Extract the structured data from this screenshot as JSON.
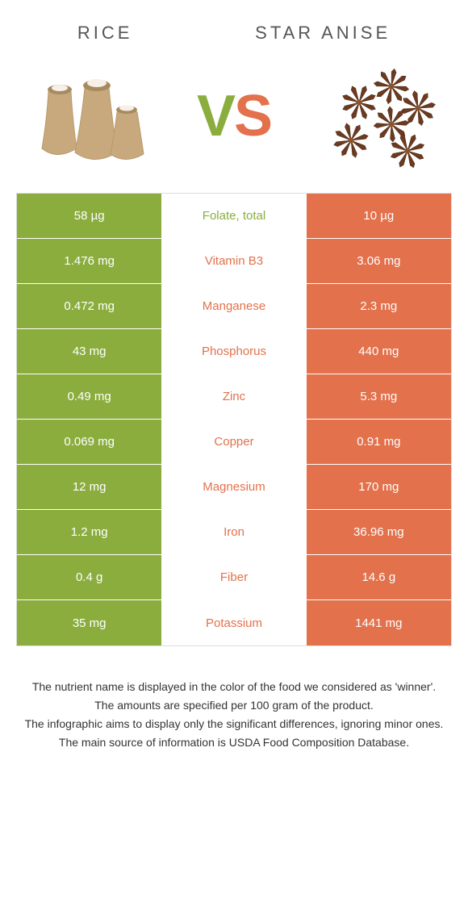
{
  "left": {
    "title": "Rice",
    "color": "#8aad3e"
  },
  "right": {
    "title": "Star Anise",
    "color": "#e2714c"
  },
  "vs": {
    "v": "V",
    "s": "S"
  },
  "rows": [
    {
      "left": "58 µg",
      "label": "Folate, total",
      "right": "10 µg",
      "winner": "left"
    },
    {
      "left": "1.476 mg",
      "label": "Vitamin B3",
      "right": "3.06 mg",
      "winner": "right"
    },
    {
      "left": "0.472 mg",
      "label": "Manganese",
      "right": "2.3 mg",
      "winner": "right"
    },
    {
      "left": "43 mg",
      "label": "Phosphorus",
      "right": "440 mg",
      "winner": "right"
    },
    {
      "left": "0.49 mg",
      "label": "Zinc",
      "right": "5.3 mg",
      "winner": "right"
    },
    {
      "left": "0.069 mg",
      "label": "Copper",
      "right": "0.91 mg",
      "winner": "right"
    },
    {
      "left": "12 mg",
      "label": "Magnesium",
      "right": "170 mg",
      "winner": "right"
    },
    {
      "left": "1.2 mg",
      "label": "Iron",
      "right": "36.96 mg",
      "winner": "right"
    },
    {
      "left": "0.4 g",
      "label": "Fiber",
      "right": "14.6 g",
      "winner": "right"
    },
    {
      "left": "35 mg",
      "label": "Potassium",
      "right": "1441 mg",
      "winner": "right"
    }
  ],
  "footnotes": [
    "The nutrient name is displayed in the color of the food we considered as 'winner'.",
    "The amounts are specified per 100 gram of the product.",
    "The infographic aims to display only the significant differences, ignoring minor ones.",
    "The main source of information is USDA Food Composition Database."
  ]
}
